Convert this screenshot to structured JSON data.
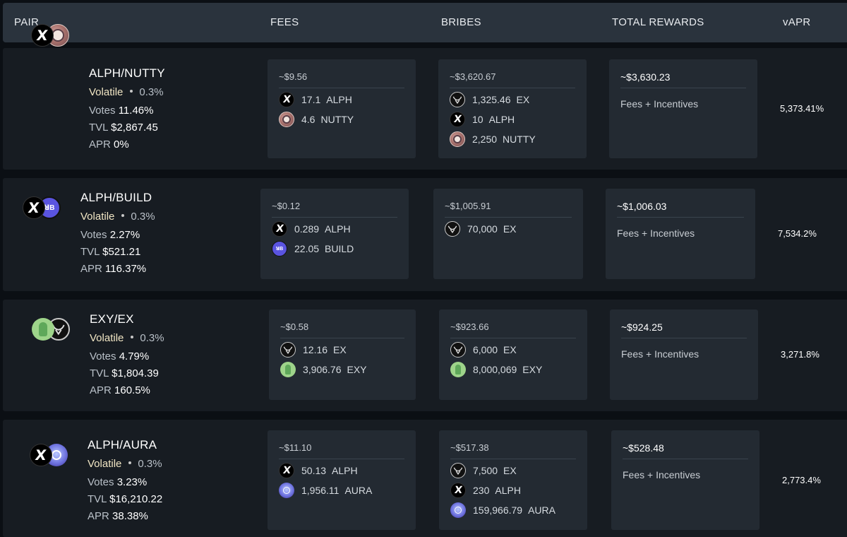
{
  "header": {
    "pair": "PAIR",
    "fees": "FEES",
    "bribes": "BRIBES",
    "total_rewards": "TOTAL REWARDS",
    "vapr": "vAPR"
  },
  "labels": {
    "volatile": "Volatile",
    "votes": "Votes",
    "tvl": "TVL",
    "apr": "APR",
    "fees_incentives": "Fees + Incentives"
  },
  "pairs": [
    {
      "name": "ALPH/NUTTY",
      "icons": [
        "alph-icon",
        "nutty-icon"
      ],
      "fee": "0.3%",
      "votes": "11.46%",
      "tvl": "$2,867.45",
      "apr": "0%",
      "fees": {
        "total": "~$9.56",
        "tokens": [
          {
            "icon": "alph-icon",
            "amount": "17.1",
            "symbol": "ALPH"
          },
          {
            "icon": "nutty-icon",
            "amount": "4.6",
            "symbol": "NUTTY"
          }
        ]
      },
      "bribes": {
        "total": "~$3,620.67",
        "tokens": [
          {
            "icon": "ex-icon",
            "amount": "1,325.46",
            "symbol": "EX"
          },
          {
            "icon": "alph-icon",
            "amount": "10",
            "symbol": "ALPH"
          },
          {
            "icon": "nutty-icon",
            "amount": "2,250",
            "symbol": "NUTTY"
          }
        ]
      },
      "total_rewards": "~$3,630.23",
      "vapr": "5,373.41%"
    },
    {
      "name": "ALPH/BUILD",
      "icons": [
        "alph-icon",
        "build-icon"
      ],
      "fee": "0.3%",
      "votes": "2.27%",
      "tvl": "$521.21",
      "apr": "116.37%",
      "fees": {
        "total": "~$0.12",
        "tokens": [
          {
            "icon": "alph-icon",
            "amount": "0.289",
            "symbol": "ALPH"
          },
          {
            "icon": "build-icon",
            "amount": "22.05",
            "symbol": "BUILD"
          }
        ]
      },
      "bribes": {
        "total": "~$1,005.91",
        "tokens": [
          {
            "icon": "ex-icon",
            "amount": "70,000",
            "symbol": "EX"
          }
        ]
      },
      "total_rewards": "~$1,006.03",
      "vapr": "7,534.2%"
    },
    {
      "name": "EXY/EX",
      "icons": [
        "exy-icon",
        "ex-icon"
      ],
      "fee": "0.3%",
      "votes": "4.79%",
      "tvl": "$1,804.39",
      "apr": "160.5%",
      "fees": {
        "total": "~$0.58",
        "tokens": [
          {
            "icon": "ex-icon",
            "amount": "12.16",
            "symbol": "EX"
          },
          {
            "icon": "exy-icon",
            "amount": "3,906.76",
            "symbol": "EXY"
          }
        ]
      },
      "bribes": {
        "total": "~$923.66",
        "tokens": [
          {
            "icon": "ex-icon",
            "amount": "6,000",
            "symbol": "EX"
          },
          {
            "icon": "exy-icon",
            "amount": "8,000,069",
            "symbol": "EXY"
          }
        ]
      },
      "total_rewards": "~$924.25",
      "vapr": "3,271.8%"
    },
    {
      "name": "ALPH/AURA",
      "icons": [
        "alph-icon",
        "aura-icon"
      ],
      "fee": "0.3%",
      "votes": "3.23%",
      "tvl": "$16,210.22",
      "apr": "38.38%",
      "fees": {
        "total": "~$11.10",
        "tokens": [
          {
            "icon": "alph-icon",
            "amount": "50.13",
            "symbol": "ALPH"
          },
          {
            "icon": "aura-icon",
            "amount": "1,956.11",
            "symbol": "AURA"
          }
        ]
      },
      "bribes": {
        "total": "~$517.38",
        "tokens": [
          {
            "icon": "ex-icon",
            "amount": "7,500",
            "symbol": "EX"
          },
          {
            "icon": "alph-icon",
            "amount": "230",
            "symbol": "ALPH"
          },
          {
            "icon": "aura-icon",
            "amount": "159,966.79",
            "symbol": "AURA"
          }
        ]
      },
      "total_rewards": "~$528.48",
      "vapr": "2,773.4%"
    }
  ]
}
